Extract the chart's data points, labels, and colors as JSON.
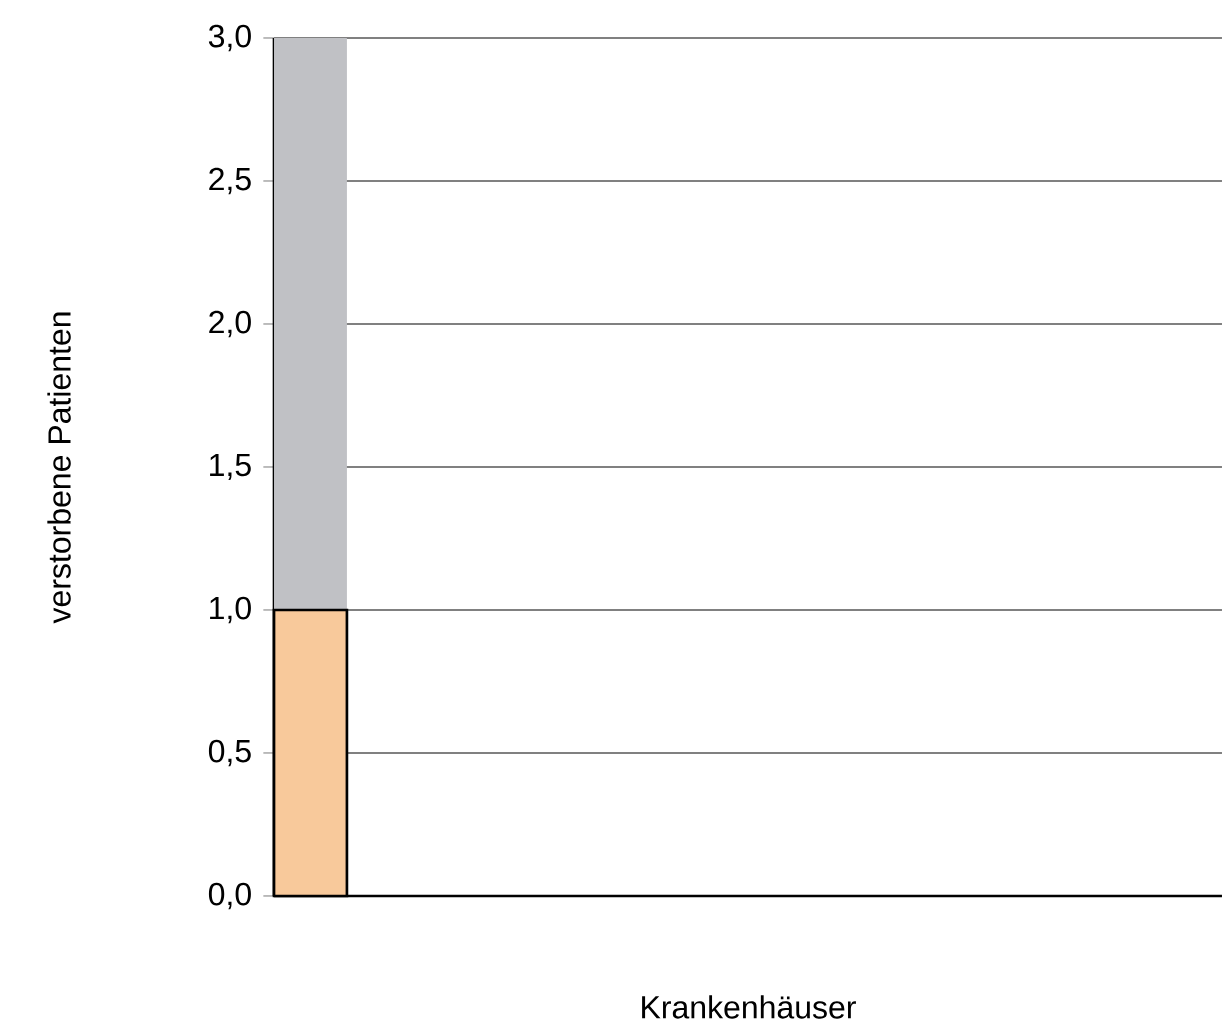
{
  "chart_data": {
    "type": "bar",
    "stacked": true,
    "xlabel": "Krankenhäuser",
    "ylabel": "verstorbene Patienten",
    "categories": [
      null,
      null,
      null,
      null,
      null,
      null,
      null,
      null,
      null,
      null,
      null,
      null,
      null
    ],
    "series": [
      {
        "color": "#f8c99b",
        "values": [
          1,
          0,
          0,
          0,
          0,
          0,
          0,
          0,
          0,
          0,
          0,
          0,
          0
        ]
      },
      {
        "color": "#c0c1c5",
        "values": [
          2,
          0,
          0,
          0,
          0,
          0,
          0,
          0,
          0,
          0,
          0,
          0,
          0
        ]
      }
    ],
    "ylim": [
      0,
      3
    ],
    "yticks": [
      {
        "value": 0,
        "label": "0,0"
      },
      {
        "value": 0.5,
        "label": "0,5"
      },
      {
        "value": 1,
        "label": "1,0"
      },
      {
        "value": 1.5,
        "label": "1,5"
      },
      {
        "value": 2,
        "label": "2,0"
      },
      {
        "value": 2.5,
        "label": "2,5"
      },
      {
        "value": 3,
        "label": "3,0"
      }
    ],
    "grid": "y",
    "tick_labels": "y"
  }
}
